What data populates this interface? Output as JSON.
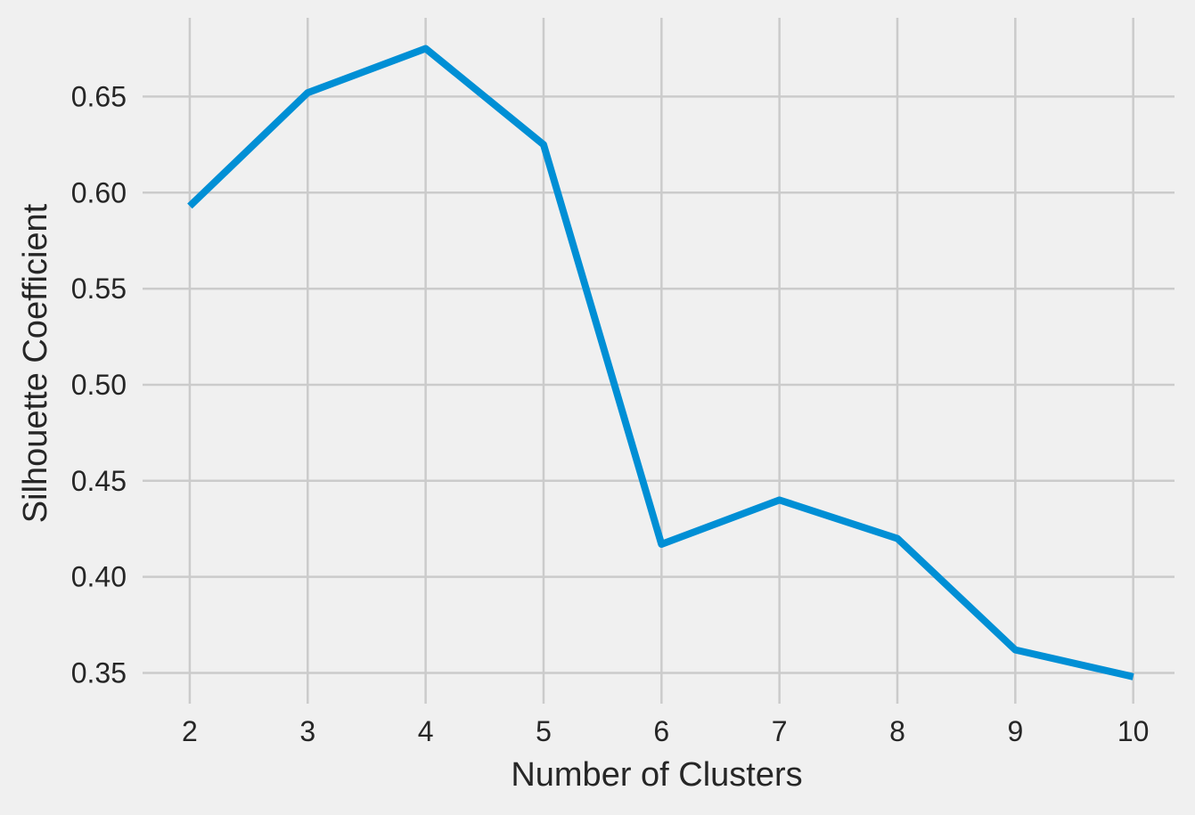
{
  "chart_data": {
    "type": "line",
    "title": "",
    "xlabel": "Number of Clusters",
    "ylabel": "Silhouette Coefficient",
    "x": [
      2,
      3,
      4,
      5,
      6,
      7,
      8,
      9,
      10
    ],
    "x_tick_labels": [
      "2",
      "3",
      "4",
      "5",
      "6",
      "7",
      "8",
      "9",
      "10"
    ],
    "y_ticks": [
      0.35,
      0.4,
      0.45,
      0.5,
      0.55,
      0.6,
      0.65
    ],
    "y_tick_labels": [
      "0.35",
      "0.40",
      "0.45",
      "0.50",
      "0.55",
      "0.60",
      "0.65"
    ],
    "xlim": [
      1.6,
      10.35
    ],
    "ylim": [
      0.334,
      0.691
    ],
    "grid": true,
    "legend": "none",
    "series": [
      {
        "values": [
          0.593,
          0.652,
          0.675,
          0.625,
          0.417,
          0.44,
          0.42,
          0.362,
          0.348
        ],
        "color": "#008fd5"
      }
    ],
    "background_color": "#f0f0f0",
    "grid_color": "#cbcbcb",
    "text_color": "#262626"
  }
}
